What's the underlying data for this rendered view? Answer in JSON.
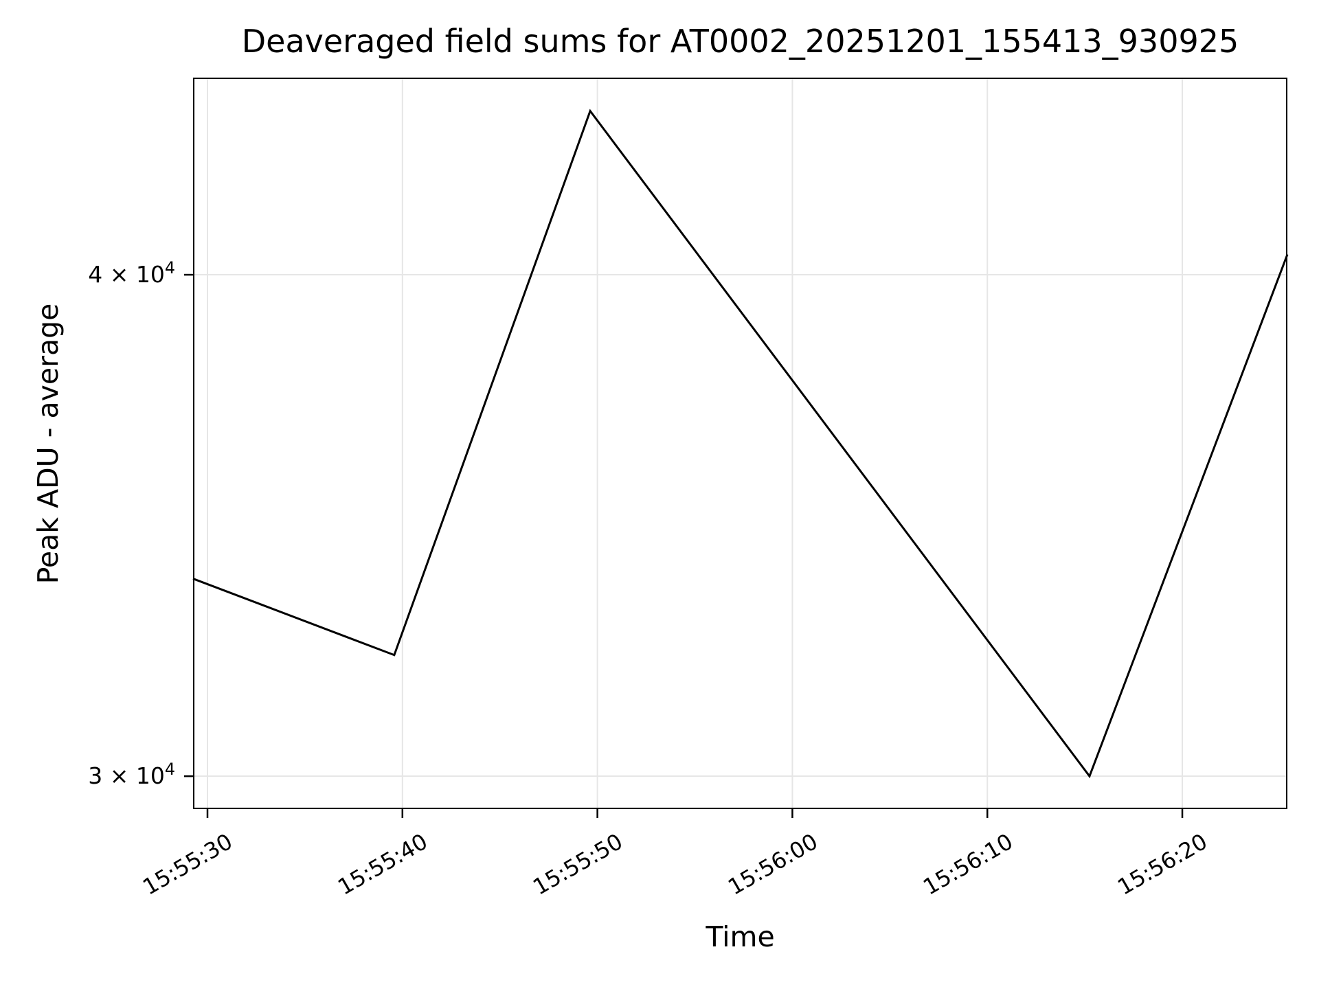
{
  "chart_data": {
    "type": "line",
    "title": "Deaveraged field sums for AT0002_20251201_155413_930925",
    "xlabel": "Time",
    "ylabel": "Peak ADU - average",
    "yscale": "log",
    "grid": true,
    "legend": "none",
    "line_color": "#000000",
    "grid_color": "#e6e6e6",
    "spine_color": "#000000",
    "x_axis_origin_time": "15:55:30",
    "xlim_seconds": [
      -0.74,
      55.39
    ],
    "ylim": [
      29440,
      44790
    ],
    "x_ticks": [
      {
        "label": "15:55:30",
        "t": 0
      },
      {
        "label": "15:55:40",
        "t": 10
      },
      {
        "label": "15:55:50",
        "t": 20
      },
      {
        "label": "15:56:00",
        "t": 30
      },
      {
        "label": "15:56:10",
        "t": 40
      },
      {
        "label": "15:56:20",
        "t": 50
      }
    ],
    "y_ticks": [
      {
        "mantissa": "4 × 10",
        "exponent": "4",
        "value": 40000
      },
      {
        "mantissa": "3 × 10",
        "exponent": "4",
        "value": 30000
      }
    ],
    "points": [
      {
        "time": "15:55:29.3",
        "t": -0.74,
        "value": 33600
      },
      {
        "time": "15:55:39.6",
        "t": 9.58,
        "value": 32160
      },
      {
        "time": "15:55:49.6",
        "t": 19.63,
        "value": 43940
      },
      {
        "time": "15:56:15.2",
        "t": 45.24,
        "value": 30000
      },
      {
        "time": "15:56:25.4",
        "t": 55.39,
        "value": 40470
      }
    ]
  }
}
